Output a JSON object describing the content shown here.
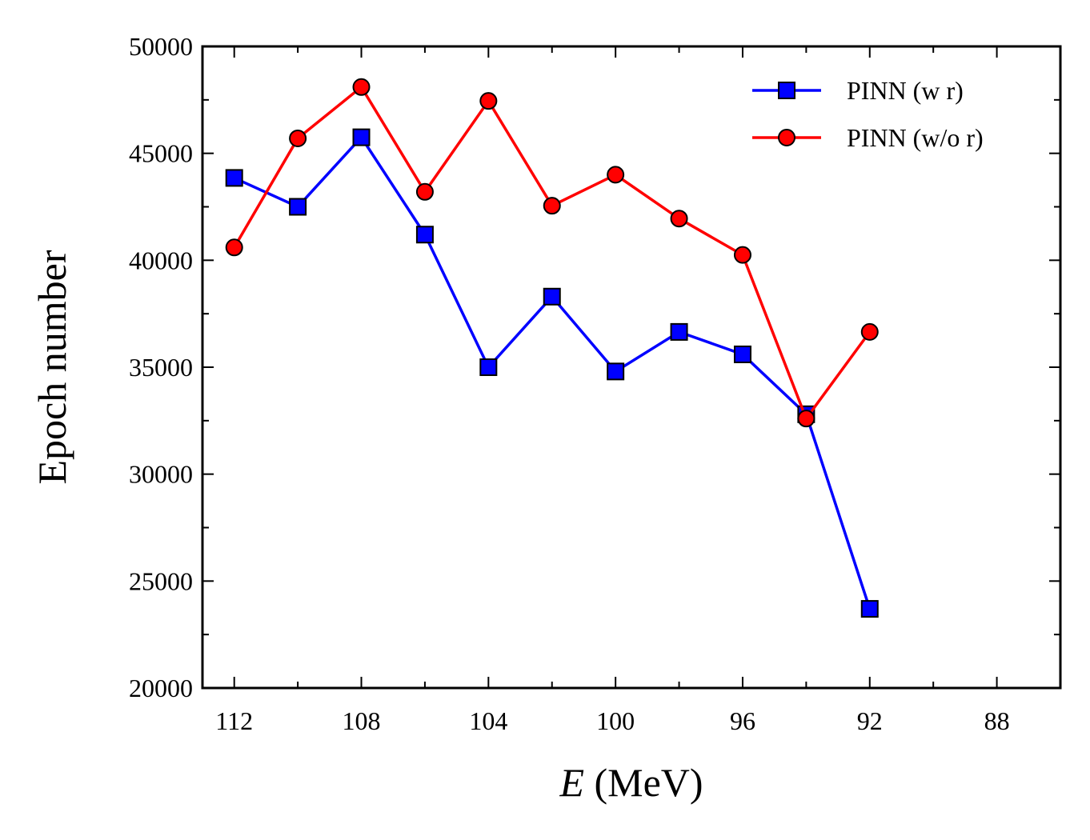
{
  "chart_data": {
    "type": "line",
    "xlabel_var": "E",
    "xlabel_unit": " (MeV)",
    "ylabel": "Epoch number",
    "xlim": [
      113,
      86
    ],
    "ylim": [
      20000,
      50000
    ],
    "x_ticks": [
      112,
      108,
      104,
      100,
      96,
      92,
      88
    ],
    "y_ticks": [
      20000,
      25000,
      30000,
      35000,
      40000,
      45000,
      50000
    ],
    "grid": false,
    "legend_position": "top-right",
    "x": [
      112,
      110,
      108,
      106,
      104,
      102,
      100,
      98,
      96,
      94,
      92,
      90
    ],
    "series": [
      {
        "name": "PINN (w r)",
        "color": "#0000ff",
        "marker": "square",
        "values": [
          43850,
          42500,
          45750,
          41200,
          35000,
          38300,
          34800,
          36650,
          35600,
          32800,
          23700,
          null
        ]
      },
      {
        "name": "PINN (w/o r)",
        "color": "#ff0000",
        "marker": "circle",
        "values": [
          40600,
          45700,
          48100,
          43200,
          47450,
          42550,
          44000,
          41950,
          40250,
          32600,
          36650,
          null
        ]
      }
    ]
  }
}
